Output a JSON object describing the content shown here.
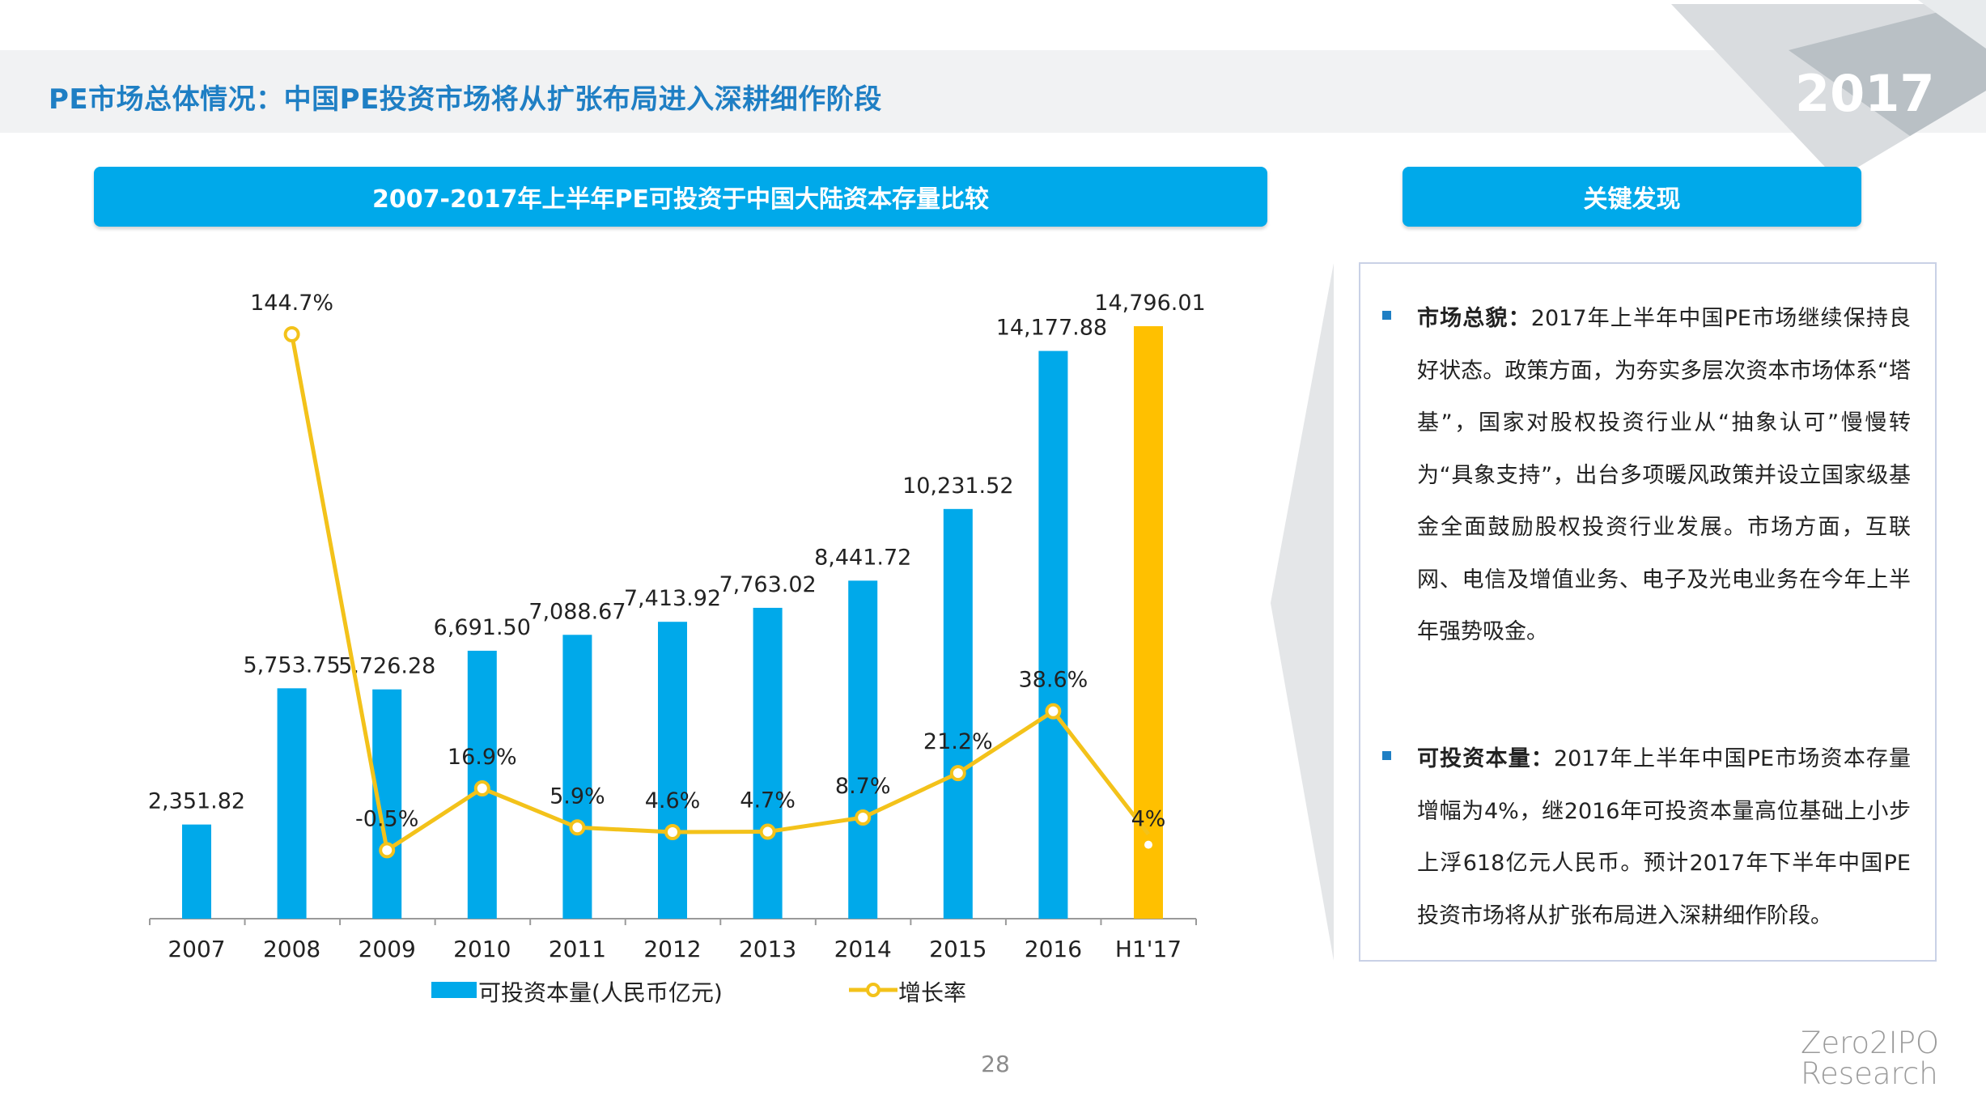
{
  "page_title": "PE市场总体情况：中国PE投资市场将从扩张布局进入深耕细作阶段",
  "year_badge": "2017",
  "chart_header": "2007-2017年上半年PE可投资于中国大陆资本存量比较",
  "findings_header": "关键发现",
  "findings": [
    {
      "label": "市场总貌：",
      "text": "2017年上半年中国PE市场继续保持良好状态。政策方面，为夯实多层次资本市场体系“塔基”，国家对股权投资行业从“抽象认可”慢慢转为“具象支持”，出台多项暖风政策并设立国家级基金全面鼓励股权投资行业发展。市场方面，互联网、电信及增值业务、电子及光电业务在今年上半年强势吸金。"
    },
    {
      "label": "可投资本量：",
      "text": "2017年上半年中国PE市场资本存量增幅为4%，继2016年可投资本量高位基础上小步上浮618亿元人民币。预计2017年下半年中国PE投资市场将从扩张布局进入深耕细作阶段。"
    }
  ],
  "page_number": "28",
  "brand": {
    "line1": "Zero2IPO",
    "line2": "Research"
  },
  "colors": {
    "bar": "#00a9ea",
    "bar_highlight": "#ffc000",
    "line": "#f3c21a",
    "title": "#1f7fc4"
  },
  "chart_data": {
    "type": "bar",
    "categories": [
      "2007",
      "2008",
      "2009",
      "2010",
      "2011",
      "2012",
      "2013",
      "2014",
      "2015",
      "2016",
      "H1'17"
    ],
    "series": [
      {
        "name": "可投资本量(人民币亿元)",
        "type": "bar",
        "values": [
          2351.82,
          5753.75,
          5726.28,
          6691.5,
          7088.67,
          7413.92,
          7763.02,
          8441.72,
          10231.52,
          14177.88,
          14796.01
        ],
        "labels": [
          "2,351.82",
          "5,753.75",
          "5,726.28",
          "6,691.50",
          "7,088.67",
          "7,413.92",
          "7,763.02",
          "8,441.72",
          "10,231.52",
          "14,177.88",
          "14,796.01"
        ]
      },
      {
        "name": "增长率",
        "type": "line",
        "values": [
          null,
          144.7,
          -0.5,
          16.9,
          5.9,
          4.6,
          4.7,
          8.7,
          21.2,
          38.6,
          4
        ],
        "labels": [
          "",
          "144.7%",
          "-0.5%",
          "16.9%",
          "5.9%",
          "4.6%",
          "4.7%",
          "8.7%",
          "21.2%",
          "38.6%",
          "4%"
        ]
      }
    ],
    "highlight_index": 10,
    "ylim_bar": [
      0,
      15000
    ],
    "ylim_line": [
      -20,
      150
    ],
    "grid": false,
    "legend_position": "bottom"
  }
}
